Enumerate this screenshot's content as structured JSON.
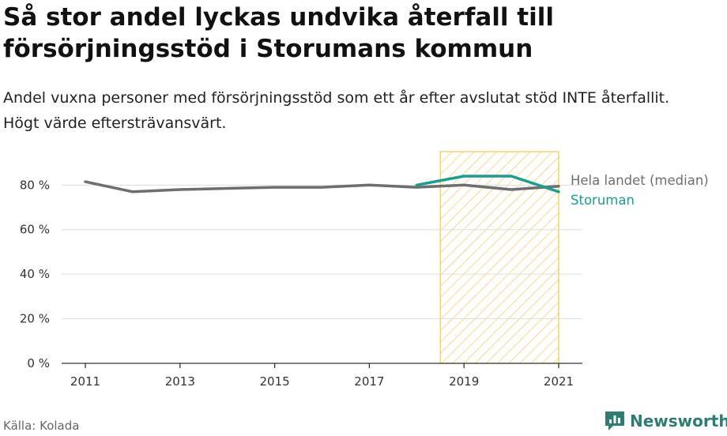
{
  "header": {
    "title": "Så stor andel lyckas undvika återfall till försörjningsstöd i Storumans kommun",
    "subtitle": "Andel vuxna personer med försörjningsstöd som ett år efter avslutat stöd INTE återfallit. Högt värde eftersträvansvärt."
  },
  "footer": {
    "source": "Källa: Kolada",
    "brand": "Newsworthy"
  },
  "colors": {
    "national": "#6e6d72",
    "municipality": "#1a9e8f",
    "highlight": "#f6c549",
    "grid": "#dddddd",
    "axis": "#333333"
  },
  "chart_data": {
    "type": "line",
    "x": [
      2011,
      2012,
      2013,
      2014,
      2015,
      2016,
      2017,
      2018,
      2019,
      2020,
      2021
    ],
    "xticks": [
      "2011",
      "2013",
      "2015",
      "2017",
      "2019",
      "2021"
    ],
    "yticks": [
      "0 %",
      "20 %",
      "40 %",
      "60 %",
      "80 %"
    ],
    "ylim": [
      0,
      95
    ],
    "highlight_range": [
      2019,
      2021
    ],
    "series": [
      {
        "name": "Hela landet (median)",
        "values": [
          81.5,
          77,
          78,
          78.5,
          79,
          79,
          80,
          79,
          80,
          78,
          79.5
        ]
      },
      {
        "name": "Storuman",
        "values": [
          null,
          null,
          null,
          null,
          null,
          null,
          null,
          80,
          84,
          84,
          77
        ]
      }
    ]
  }
}
